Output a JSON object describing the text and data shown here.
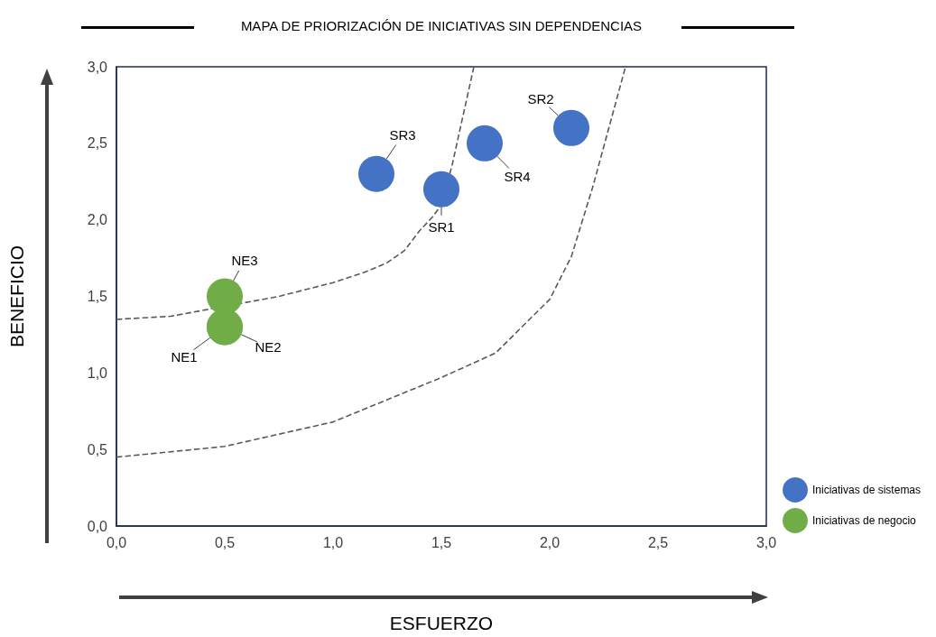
{
  "chart_data": {
    "type": "bubble",
    "title": "MAPA DE PRIORIZACIÓN DE INICIATIVAS SIN DEPENDENCIAS",
    "xlabel": "ESFUERZO",
    "ylabel": "BENEFICIO",
    "xlim": [
      0,
      3
    ],
    "ylim": [
      0,
      3
    ],
    "xticks": [
      {
        "value": 0,
        "label": "0,0"
      },
      {
        "value": 0.5,
        "label": "0,5"
      },
      {
        "value": 1,
        "label": "1,0"
      },
      {
        "value": 1.5,
        "label": "1,5"
      },
      {
        "value": 2,
        "label": "2,0"
      },
      {
        "value": 2.5,
        "label": "2,5"
      },
      {
        "value": 3,
        "label": "3,0"
      }
    ],
    "yticks": [
      {
        "value": 0,
        "label": "0,0"
      },
      {
        "value": 0.5,
        "label": "0,5"
      },
      {
        "value": 1,
        "label": "1,0"
      },
      {
        "value": 1.5,
        "label": "1,5"
      },
      {
        "value": 2,
        "label": "2,0"
      },
      {
        "value": 2.5,
        "label": "2,5"
      },
      {
        "value": 3,
        "label": "3,0"
      }
    ],
    "grid": false,
    "legend": "bottom right",
    "marker": "circle",
    "series": [
      {
        "name": "Iniciativas de sistemas",
        "color": "#4472c4",
        "x": [
          1.5,
          2.1,
          1.2,
          1.7
        ],
        "values": [
          2.2,
          2.6,
          2.3,
          2.5
        ],
        "sizes": [
          1,
          1,
          1,
          1
        ]
      },
      {
        "name": "Iniciativas de negocio",
        "color": "#70ad47",
        "x": [
          0.5,
          0.5,
          0.5
        ],
        "values": [
          1.3,
          1.3,
          1.5
        ],
        "sizes": [
          1,
          1,
          1
        ]
      },
      {
        "type": "line",
        "color": "#595959",
        "line_style": "dashed",
        "marker": "none",
        "x": [
          0,
          0.25,
          0.75,
          1.0,
          1.15,
          1.25,
          1.33,
          1.4,
          1.46,
          1.5,
          1.55,
          1.6,
          1.65
        ],
        "values": [
          1.35,
          1.37,
          1.5,
          1.59,
          1.66,
          1.72,
          1.8,
          1.93,
          2.02,
          2.1,
          2.36,
          2.68,
          3.0
        ]
      },
      {
        "type": "line",
        "color": "#595959",
        "line_style": "dashed",
        "marker": "none",
        "x": [
          0,
          0.5,
          1.0,
          1.5,
          1.75,
          2.0,
          2.1,
          2.2,
          2.3,
          2.35
        ],
        "values": [
          0.45,
          0.52,
          0.68,
          0.97,
          1.13,
          1.48,
          1.76,
          2.22,
          2.74,
          3.0
        ]
      }
    ],
    "annotations": [
      {
        "text": "SR2",
        "x": 2.1,
        "y": 2.6
      },
      {
        "text": "SR4",
        "x": 1.7,
        "y": 2.5
      },
      {
        "text": "SR1",
        "x": 1.5,
        "y": 2.2
      },
      {
        "text": "SR3",
        "x": 1.2,
        "y": 2.3
      },
      {
        "text": "NE3",
        "x": 0.5,
        "y": 1.5
      },
      {
        "text": "NE1",
        "x": 0.5,
        "y": 1.3
      },
      {
        "text": "NE2",
        "x": 0.5,
        "y": 1.3
      }
    ]
  }
}
